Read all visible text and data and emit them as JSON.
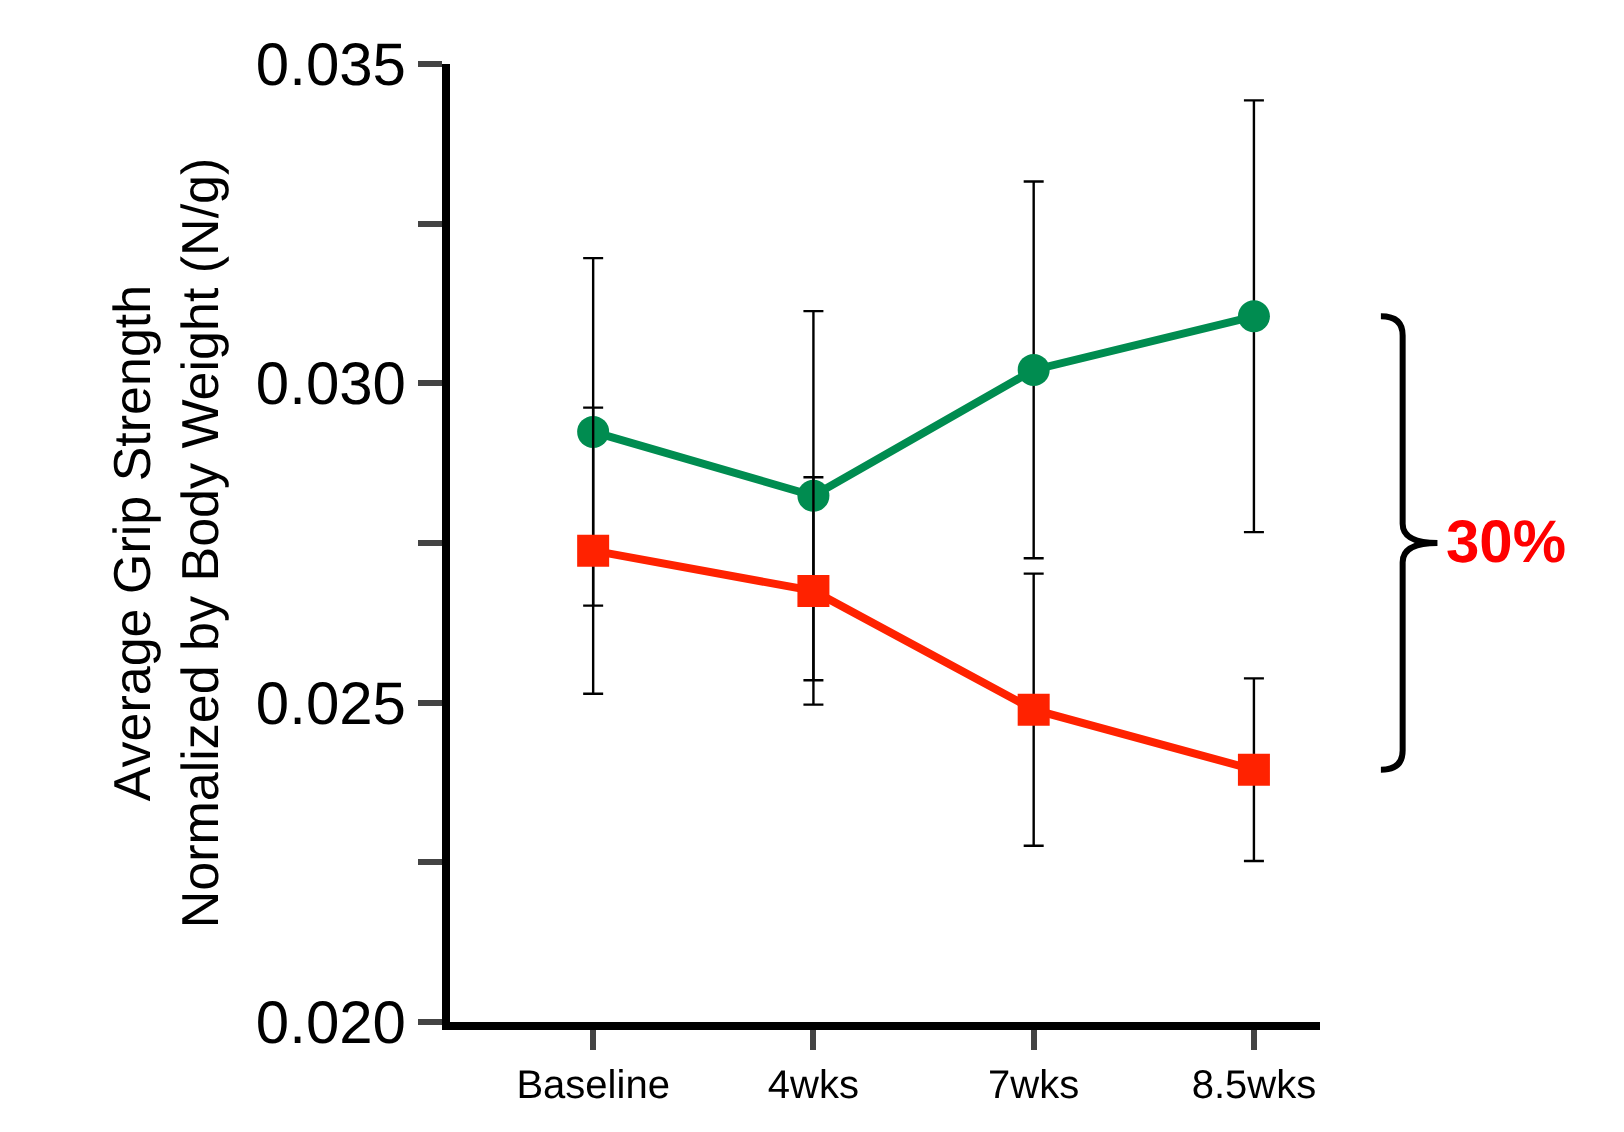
{
  "chart_data": {
    "type": "line",
    "ylabel": "Average Grip Strength\nNormalized by Body Weight (N/g)",
    "categories": [
      "Baseline",
      "4wks",
      "7wks",
      "8.5wks"
    ],
    "series": [
      {
        "color": "#008c50",
        "marker": "circle",
        "values": [
          0.02924,
          0.02824,
          0.03021,
          0.03105
        ],
        "errors": [
          0.00272,
          0.00289,
          0.00295,
          0.00338
        ]
      },
      {
        "color": "#ff2200",
        "marker": "square",
        "values": [
          0.02738,
          0.02675,
          0.02489,
          0.02395
        ],
        "errors": [
          0.00224,
          0.00178,
          0.00213,
          0.00143
        ]
      }
    ],
    "ylim": [
      0.02,
      0.035
    ],
    "yticks": [
      {
        "value": 0.02,
        "label": "0.020"
      },
      {
        "value": 0.0225,
        "label": null
      },
      0.025,
      {
        "value": 0.0275,
        "label": null
      },
      {
        "value": 0.03,
        "label": "0.030"
      },
      {
        "value": 0.0325,
        "label": null
      },
      0.035
    ],
    "annotations": [
      "30%"
    ],
    "grid": false,
    "legend": false
  }
}
